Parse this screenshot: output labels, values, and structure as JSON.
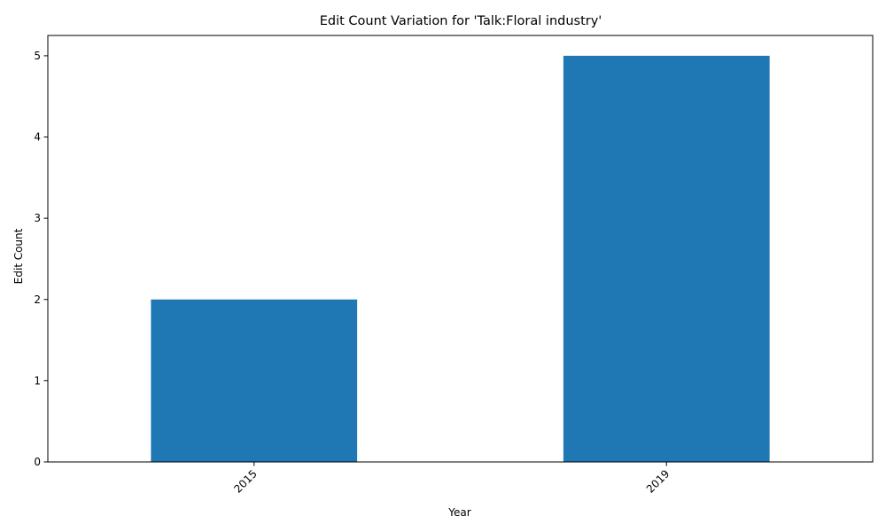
{
  "chart_data": {
    "type": "bar",
    "title": "Edit Count Variation for 'Talk:Floral industry'",
    "xlabel": "Year",
    "ylabel": "Edit Count",
    "categories": [
      "2015",
      "2019"
    ],
    "values": [
      2,
      5
    ],
    "ylim": [
      0,
      5.25
    ],
    "yticks": [
      0,
      1,
      2,
      3,
      4,
      5
    ],
    "grid": false,
    "legend": "none",
    "bar_color": "#1f77b4",
    "x_tick_rotation_deg": 45
  }
}
